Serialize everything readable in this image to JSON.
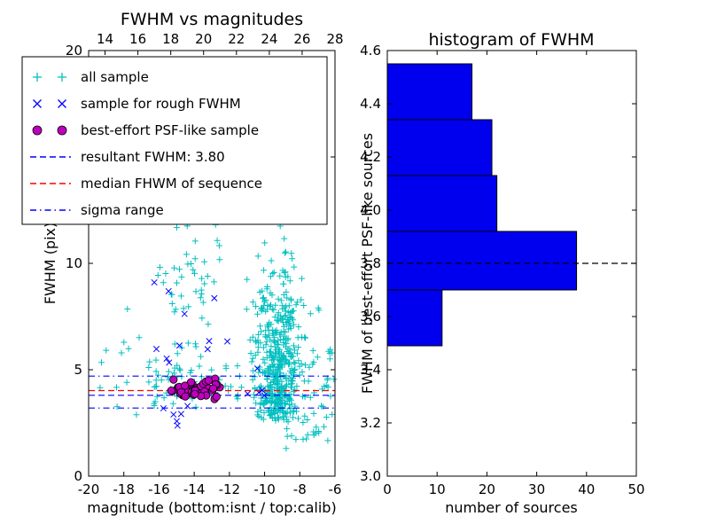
{
  "figure": {
    "background": "#ffffff"
  },
  "chart_data": [
    {
      "id": "fwhm-vs-magnitudes",
      "type": "scatter",
      "title": "FWHM vs magnitudes",
      "xlabel": "magnitude (bottom:isnt / top:calib)",
      "ylabel": "FWHM (pix)",
      "xlim": [
        -20,
        -6
      ],
      "ylim": [
        0,
        20
      ],
      "xticks": [
        -20,
        -18,
        -16,
        -14,
        -12,
        -10,
        -8,
        -6
      ],
      "yticks": [
        0,
        5,
        10,
        15,
        20
      ],
      "top_axis": {
        "lim": [
          13,
          28
        ],
        "ticks": [
          14,
          16,
          18,
          20,
          22,
          24,
          26,
          28
        ]
      },
      "grid": false,
      "legend_position": "upper-left",
      "seed": 7,
      "series": [
        {
          "name": "all sample",
          "marker": "plus",
          "color": "#00bfbf",
          "clusters": [
            {
              "n": 430,
              "x": {
                "dist": "normal",
                "mean": -9.2,
                "sd": 0.7,
                "min": -11.4,
                "max": -6.6
              },
              "y": {
                "dist": "normal",
                "mean": 5.4,
                "sd": 2.1,
                "min": 2.6,
                "max": 12.4
              }
            },
            {
              "n": 80,
              "x": {
                "dist": "normal",
                "mean": -9.3,
                "sd": 0.55,
                "min": -10.8,
                "max": -7.4
              },
              "y": {
                "dist": "normal",
                "mean": 3.5,
                "sd": 0.45,
                "min": 2.3,
                "max": 4.6
              }
            },
            {
              "n": 60,
              "x": {
                "dist": "uniform",
                "min": -16.6,
                "max": -11.3
              },
              "y": {
                "dist": "normal",
                "mean": 4.2,
                "sd": 0.55,
                "min": 3.0,
                "max": 5.8
              }
            },
            {
              "n": 55,
              "x": {
                "dist": "normal",
                "mean": -14.3,
                "sd": 0.9,
                "min": -16.3,
                "max": -12.2
              },
              "y": {
                "dist": "uniform",
                "min": 4.6,
                "max": 12.2
              }
            },
            {
              "n": 12,
              "x": {
                "dist": "uniform",
                "min": -19.7,
                "max": -16.7
              },
              "y": {
                "dist": "uniform",
                "min": 2.3,
                "max": 8.6
              }
            },
            {
              "n": 22,
              "x": {
                "dist": "uniform",
                "min": -8.8,
                "max": -6.1
              },
              "y": {
                "dist": "uniform",
                "min": 1.3,
                "max": 3.2
              }
            },
            {
              "n": 18,
              "x": {
                "dist": "uniform",
                "min": -7.3,
                "max": -6.0
              },
              "y": {
                "dist": "uniform",
                "min": 3.2,
                "max": 6.2
              }
            }
          ]
        },
        {
          "name": "sample for rough FWHM",
          "marker": "x",
          "color": "#0000ff",
          "clusters": [
            {
              "n": 17,
              "x": {
                "dist": "uniform",
                "min": -16.6,
                "max": -11.6
              },
              "y": {
                "dist": "uniform",
                "min": 1.6,
                "max": 9.6
              }
            },
            {
              "n": 5,
              "x": {
                "dist": "uniform",
                "min": -11.4,
                "max": -9.8
              },
              "y": {
                "dist": "uniform",
                "min": 3.6,
                "max": 5.2
              }
            }
          ]
        },
        {
          "name": "best-effort PSF-like sample",
          "marker": "circle",
          "color": "#bf00bf",
          "edge_color": "#000000",
          "clusters": [
            {
              "n": 58,
              "x": {
                "dist": "normal",
                "mean": -13.7,
                "sd": 0.85,
                "min": -15.9,
                "max": -12.4
              },
              "y": {
                "dist": "normal",
                "mean": 4.1,
                "sd": 0.22,
                "min": 3.62,
                "max": 4.6
              }
            }
          ]
        }
      ],
      "lines": [
        {
          "name": "resultant-fwhm-line",
          "y": 3.8,
          "color": "#0000ff",
          "style": "dashed"
        },
        {
          "name": "median-fwhm-line",
          "y": 4.02,
          "color": "#ff0000",
          "style": "dashed"
        },
        {
          "name": "sigma-range-upper-line",
          "y": 4.7,
          "color": "#0000ff",
          "style": "dashdot"
        },
        {
          "name": "sigma-range-lower-line",
          "y": 3.2,
          "color": "#0000ff",
          "style": "dashdot"
        }
      ],
      "legend": {
        "items": [
          {
            "label": "all sample",
            "type": "marker",
            "marker": "plus",
            "color": "#00bfbf"
          },
          {
            "label": "sample for rough FWHM",
            "type": "marker",
            "marker": "x",
            "color": "#0000ff"
          },
          {
            "label": "best-effort PSF-like sample",
            "type": "marker",
            "marker": "circle",
            "color": "#bf00bf"
          },
          {
            "label": "resultant FWHM: 3.80",
            "type": "line",
            "style": "dashed",
            "color": "#0000ff"
          },
          {
            "label": "median FHWM of sequence",
            "type": "line",
            "style": "dashed",
            "color": "#ff0000"
          },
          {
            "label": "sigma range",
            "type": "line",
            "style": "dashdot",
            "color": "#0000ff"
          }
        ]
      },
      "resultant_fwhm": "3.80"
    },
    {
      "id": "fwhm-histogram",
      "type": "bar",
      "orientation": "horizontal",
      "title": "histogram of FWHM",
      "xlabel": "number of sources",
      "ylabel": "FWHM of best-effort PSF-like sources",
      "xlim": [
        0,
        50
      ],
      "ylim": [
        3.0,
        4.6
      ],
      "xticks": [
        0,
        10,
        20,
        30,
        40,
        50
      ],
      "yticks": [
        3.0,
        3.2,
        3.4,
        3.6,
        3.8,
        4.0,
        4.2,
        4.4,
        4.6
      ],
      "bar_color": "#0000ee",
      "bar_edge_color": "#000000",
      "dashed_line_y": 3.8,
      "bins": [
        {
          "from": 3.49,
          "to": 3.7,
          "count": 11
        },
        {
          "from": 3.7,
          "to": 3.92,
          "count": 38
        },
        {
          "from": 3.92,
          "to": 4.13,
          "count": 22
        },
        {
          "from": 4.13,
          "to": 4.34,
          "count": 21
        },
        {
          "from": 4.34,
          "to": 4.55,
          "count": 17
        }
      ]
    }
  ]
}
